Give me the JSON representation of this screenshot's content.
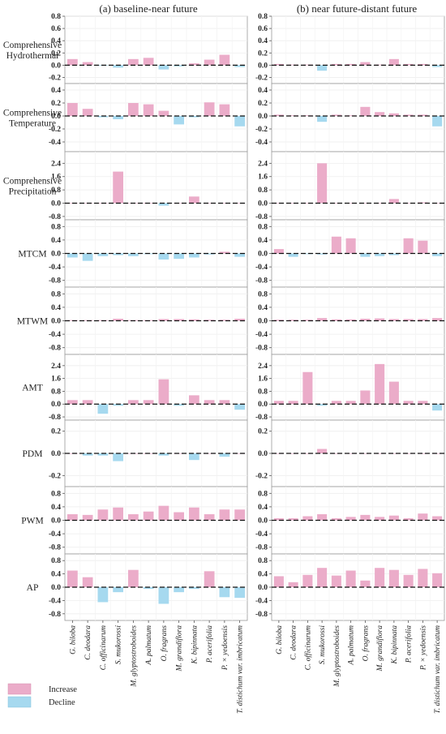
{
  "chart_data": {
    "type": "bar",
    "panel_titles": [
      "(a) baseline-near future",
      "(b) near future-distant future"
    ],
    "categories": [
      "G. biloba",
      "C. deodara",
      "C. officinarum",
      "S. mukorossi",
      "M. glyptostroboides",
      "A. palmatum",
      "O. fragrans",
      "M. grandiflora",
      "K. bipinnata",
      "P. acerifolia",
      "P. × yedoensis",
      "T. distichum var. imbricatum"
    ],
    "legend": {
      "position": "bottom-left",
      "entries": [
        {
          "label": "Increase",
          "color": "#ebacc9"
        },
        {
          "label": "Decline",
          "color": "#a6d9ef"
        }
      ]
    },
    "grid": true,
    "rows": [
      {
        "label": [
          "Comprehensive",
          "Hydrothermal"
        ],
        "ylim": [
          -0.3,
          0.8
        ],
        "ticks": [
          0.8,
          0.6,
          0.4,
          0.2,
          0.0,
          -0.2
        ],
        "tick_labels": [
          "0.8",
          "0.6",
          "0.4",
          "0.2",
          "0.0",
          "-0.2"
        ],
        "a": [
          0.1,
          0.05,
          -0.01,
          -0.04,
          0.1,
          0.12,
          -0.07,
          -0.02,
          0.03,
          0.09,
          0.17,
          -0.03
        ],
        "b": [
          0.02,
          0.01,
          0.01,
          -0.09,
          0.02,
          0.02,
          0.05,
          0.01,
          0.1,
          0.02,
          0.02,
          -0.03
        ]
      },
      {
        "label": [
          "Comprehensive",
          "Temperature"
        ],
        "ylim": [
          -0.55,
          0.5
        ],
        "ticks": [
          0.4,
          0.2,
          0.0,
          -0.2,
          -0.4
        ],
        "tick_labels": [
          "0.4",
          "0.2",
          "0.0",
          "-0.2",
          "-0.4"
        ],
        "a": [
          0.2,
          0.11,
          -0.02,
          -0.05,
          0.2,
          0.18,
          0.08,
          -0.13,
          -0.02,
          0.21,
          0.18,
          -0.16
        ],
        "b": [
          0.02,
          0.01,
          0.01,
          -0.09,
          0.02,
          0.01,
          0.14,
          0.06,
          0.04,
          0.02,
          0.02,
          -0.16
        ]
      },
      {
        "label": [
          "Comprehensive",
          "Precipitation"
        ],
        "ylim": [
          -1.0,
          3.1
        ],
        "ticks": [
          2.4,
          1.6,
          0.8,
          0.0,
          -0.8
        ],
        "tick_labels": [
          "2.4",
          "1.6",
          "0.8",
          "0.0",
          "-0.8"
        ],
        "a": [
          0.02,
          0.02,
          0.01,
          1.9,
          0.02,
          0.01,
          -0.15,
          0.02,
          0.4,
          0.02,
          0.02,
          0.02
        ],
        "b": [
          0.02,
          0.02,
          0.02,
          2.4,
          0.02,
          0.02,
          0.02,
          0.02,
          0.25,
          0.02,
          0.05,
          0.02
        ]
      },
      {
        "label": [
          "MTCM"
        ],
        "ylim": [
          -1.0,
          1.0
        ],
        "ticks": [
          0.8,
          0.4,
          0.0,
          -0.4,
          -0.8
        ],
        "tick_labels": [
          "0.8",
          "0.4",
          "0.0",
          "-0.4",
          "-0.8"
        ],
        "a": [
          -0.12,
          -0.22,
          -0.08,
          -0.05,
          -0.08,
          -0.02,
          -0.18,
          -0.16,
          -0.12,
          -0.03,
          0.05,
          -0.1
        ],
        "b": [
          0.13,
          -0.1,
          -0.02,
          -0.03,
          0.5,
          0.45,
          -0.1,
          -0.08,
          -0.05,
          0.45,
          0.38,
          -0.08
        ]
      },
      {
        "label": [
          "MTWM"
        ],
        "ylim": [
          -1.0,
          1.0
        ],
        "ticks": [
          0.8,
          0.4,
          0.0,
          -0.4,
          -0.8
        ],
        "tick_labels": [
          "0.8",
          "0.4",
          "0.0",
          "-0.4",
          "-0.8"
        ],
        "a": [
          0.02,
          0.02,
          0.02,
          0.06,
          0.02,
          0.02,
          0.05,
          0.05,
          0.04,
          0.03,
          0.03,
          0.06
        ],
        "b": [
          0.03,
          0.03,
          0.03,
          0.08,
          0.04,
          0.04,
          0.06,
          0.07,
          0.05,
          0.05,
          0.05,
          0.08
        ]
      },
      {
        "label": [
          "AMT"
        ],
        "ylim": [
          -1.0,
          3.1
        ],
        "ticks": [
          2.4,
          1.6,
          0.8,
          0.0,
          -0.8
        ],
        "tick_labels": [
          "2.4",
          "1.6",
          "0.8",
          "0.0",
          "-0.8"
        ],
        "a": [
          0.25,
          0.25,
          -0.6,
          -0.1,
          0.25,
          0.25,
          1.55,
          -0.1,
          0.55,
          0.25,
          0.25,
          -0.35
        ],
        "b": [
          0.2,
          0.2,
          2.0,
          -0.1,
          0.2,
          0.2,
          0.85,
          2.5,
          1.4,
          0.2,
          0.2,
          -0.4
        ]
      },
      {
        "label": [
          "PDM"
        ],
        "ylim": [
          -0.3,
          0.3
        ],
        "ticks": [
          0.2,
          0.0,
          -0.2
        ],
        "tick_labels": [
          "0.2",
          "0.0",
          "-0.2"
        ],
        "a": [
          0.0,
          -0.02,
          -0.02,
          -0.07,
          0.0,
          0.0,
          -0.02,
          0.0,
          -0.06,
          0.0,
          -0.03,
          0.0
        ],
        "b": [
          0.0,
          0.0,
          0.0,
          0.04,
          0.0,
          0.0,
          0.0,
          0.0,
          0.0,
          0.0,
          0.0,
          0.0
        ]
      },
      {
        "label": [
          "PWM"
        ],
        "ylim": [
          -1.0,
          1.0
        ],
        "ticks": [
          0.8,
          0.4,
          0.0,
          -0.4,
          -0.8
        ],
        "tick_labels": [
          "0.8",
          "0.4",
          "0.0",
          "-0.4",
          "-0.8"
        ],
        "a": [
          0.18,
          0.16,
          0.32,
          0.38,
          0.18,
          0.26,
          0.43,
          0.24,
          0.38,
          0.18,
          0.32,
          0.32
        ],
        "b": [
          0.06,
          0.06,
          0.12,
          0.18,
          0.06,
          0.1,
          0.16,
          0.1,
          0.14,
          0.06,
          0.2,
          0.12
        ]
      },
      {
        "label": [
          "AP"
        ],
        "ylim": [
          -1.0,
          1.0
        ],
        "ticks": [
          0.8,
          0.4,
          0.0,
          -0.4,
          -0.8
        ],
        "tick_labels": [
          "0.8",
          "0.4",
          "0.0",
          "-0.4",
          "-0.8"
        ],
        "a": [
          0.5,
          0.3,
          -0.45,
          -0.15,
          0.52,
          -0.05,
          -0.5,
          -0.15,
          -0.05,
          0.48,
          -0.3,
          -0.32
        ],
        "b": [
          0.33,
          0.15,
          0.37,
          0.58,
          0.35,
          0.5,
          0.2,
          0.58,
          0.52,
          0.37,
          0.55,
          0.42
        ]
      }
    ]
  }
}
